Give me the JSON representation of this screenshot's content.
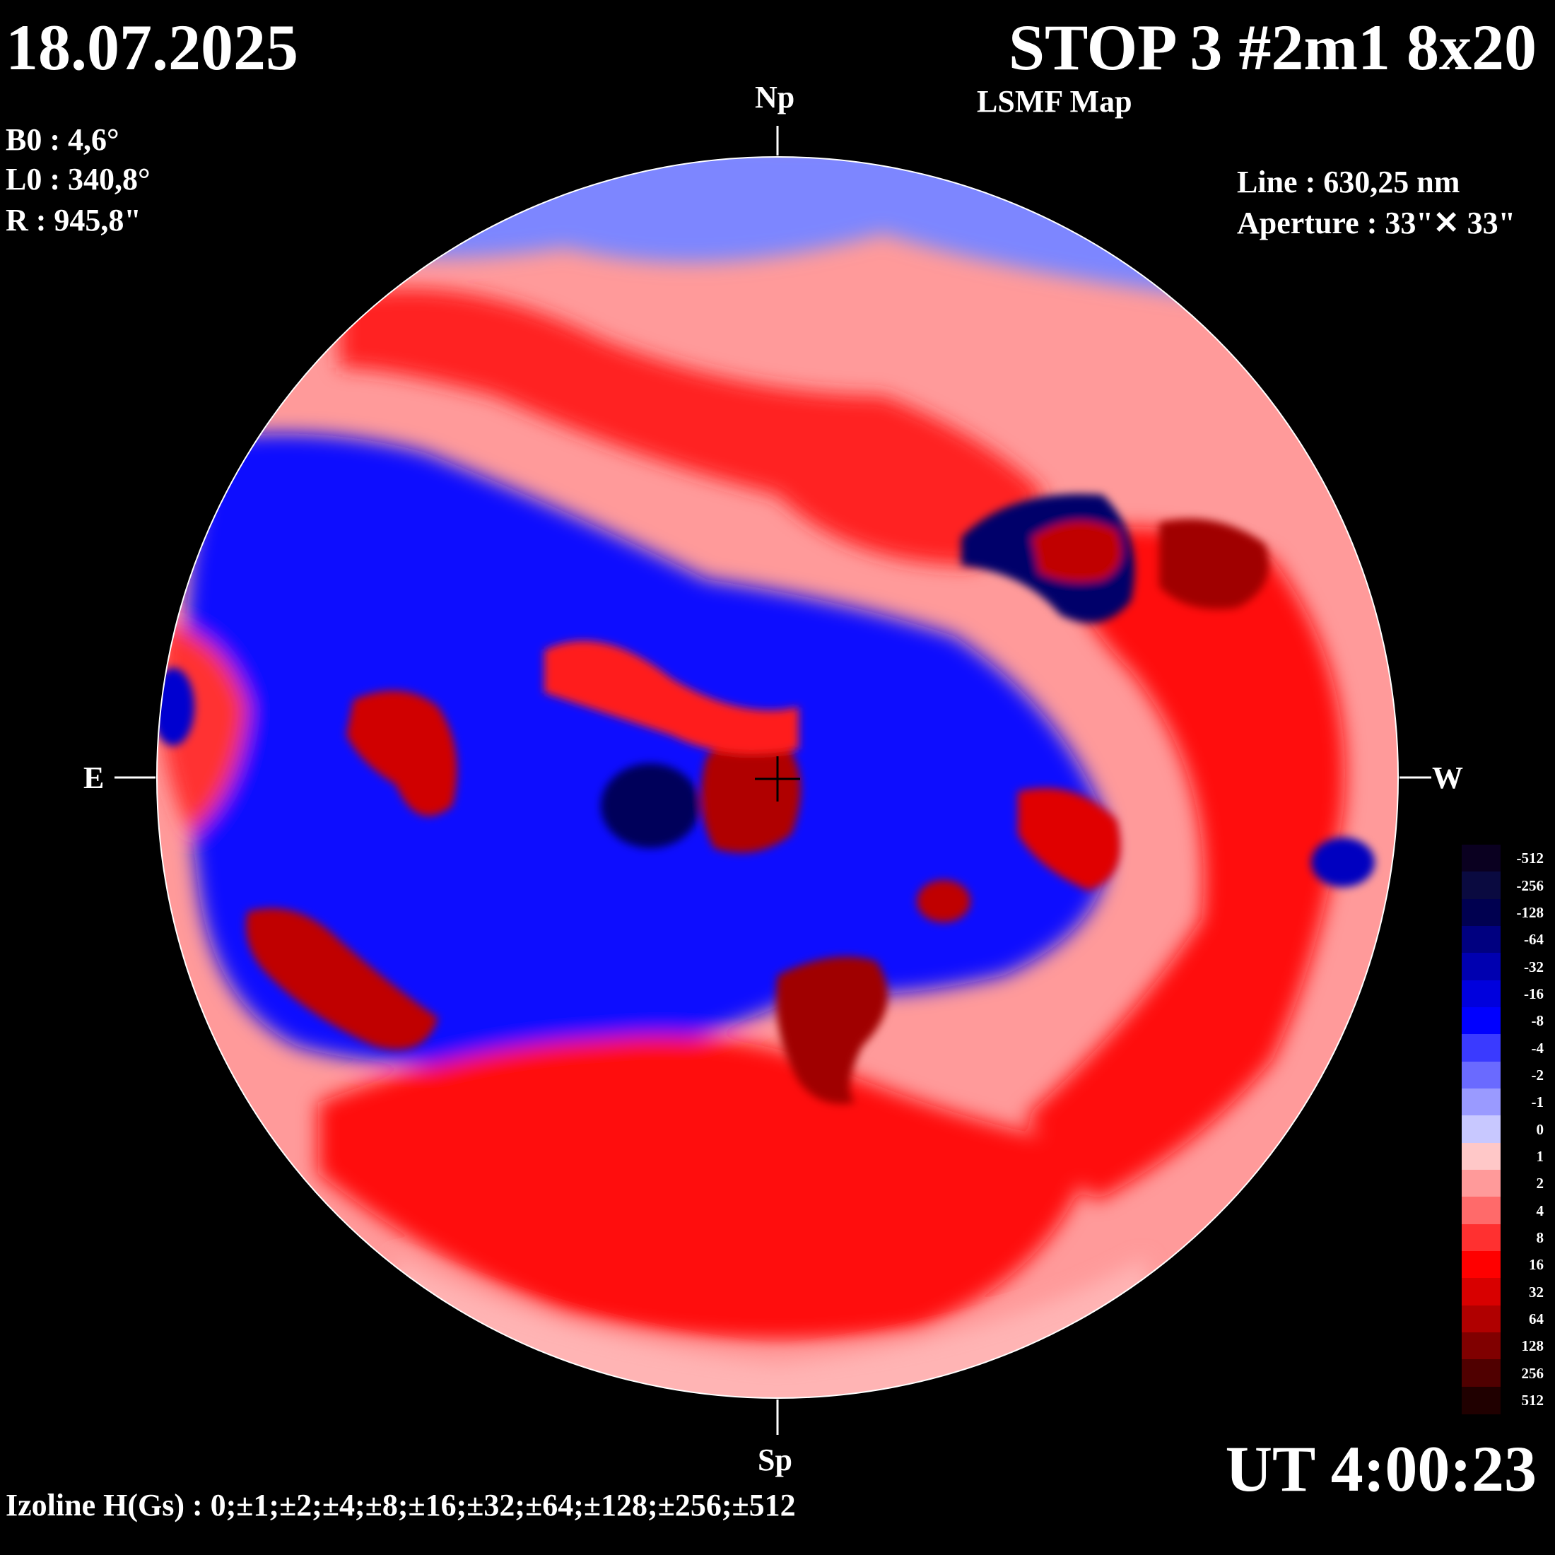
{
  "header": {
    "date": "18.07.2025",
    "title": "STOP 3 #2m1 8x20",
    "subtitle": "LSMF  Map"
  },
  "params": {
    "b0": "B0 : 4,6°",
    "l0": "L0 : 340,8°",
    "r": "R  : 945,8\"",
    "line": "Line :  630,25 nm",
    "aperture": "Aperture : 33\"✕ 33\""
  },
  "orientation": {
    "north": "Np",
    "south": "Sp",
    "east": "E",
    "west": "W"
  },
  "footer": {
    "ut": "UT 4:00:23",
    "izoline": "Izoline H(Gs) : 0;±1;±2;±4;±8;±16;±32;±64;±128;±256;±512"
  },
  "colorbar": {
    "labels": [
      "-512",
      "-256",
      "-128",
      "-64",
      "-32",
      "-16",
      "-8",
      "-4",
      "-2",
      "-1",
      "0",
      "1",
      "2",
      "4",
      "8",
      "16",
      "32",
      "64",
      "128",
      "256",
      "512"
    ],
    "colors": [
      "#0a0020",
      "#0a0a40",
      "#000050",
      "#000080",
      "#0000b0",
      "#0000dd",
      "#0000ff",
      "#3a3aff",
      "#6a6aff",
      "#9a9aff",
      "#c8c8ff",
      "#ffc8c8",
      "#ff9a9a",
      "#ff6a6a",
      "#ff3030",
      "#ff0000",
      "#d80000",
      "#b00000",
      "#800000",
      "#500000",
      "#200000"
    ],
    "accent_negative": "#0000ff",
    "accent_positive": "#ff0000"
  },
  "disk_features": {
    "positive_regions": [
      {
        "name": "north-red-band",
        "field": 16
      },
      {
        "name": "ne-red-patch",
        "field": 64
      },
      {
        "name": "center-red-core",
        "field": 128
      },
      {
        "name": "west-red-band",
        "field": 32
      },
      {
        "name": "south-red-band",
        "field": 32
      },
      {
        "name": "sw-red-patch",
        "field": 64
      },
      {
        "name": "se-red-patch",
        "field": 128
      }
    ],
    "negative_regions": [
      {
        "name": "central-blue-band",
        "field": -32
      },
      {
        "name": "center-blue-core",
        "field": -128
      },
      {
        "name": "ne-blue-patch",
        "field": -128
      },
      {
        "name": "north-light-blue",
        "field": -2
      }
    ]
  }
}
